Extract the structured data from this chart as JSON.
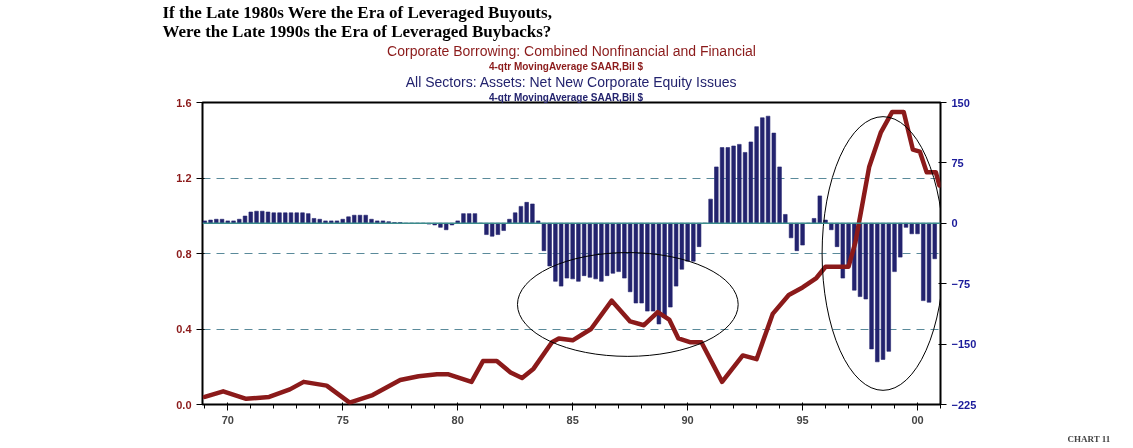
{
  "chart_data": {
    "type": "bar",
    "title": "If the Late 1980s Were the Era of Leveraged Buyouts,\nWere the Late 1990s the Era of Leveraged Buybacks?",
    "xlim": [
      1968.9,
      2001.0
    ],
    "xticks": [
      {
        "value": 1970,
        "label": "70"
      },
      {
        "value": 1975,
        "label": "75"
      },
      {
        "value": 1980,
        "label": "80"
      },
      {
        "value": 1985,
        "label": "85"
      },
      {
        "value": 1990,
        "label": "90"
      },
      {
        "value": 1995,
        "label": "95"
      },
      {
        "value": 2000,
        "label": "00"
      }
    ],
    "ylim": [
      0,
      1.6
    ],
    "yticks": [
      {
        "value": 0,
        "label": "0.0"
      },
      0.4,
      0.8,
      1.2,
      1.6
    ],
    "y2lim": [
      -225,
      150
    ],
    "y2ticks": [
      -225,
      -150,
      -75,
      0,
      75,
      150
    ],
    "grid": "y",
    "legend": "top",
    "ref_lines": [
      {
        "axis": "y2",
        "value": 0,
        "color": "#3c8c8c"
      }
    ],
    "series": [
      {
        "name": "Corporate Borrowing: Combined Nonfinancial and Financial",
        "type": "line",
        "color": "#8b1a1a",
        "axis": "y",
        "x": [
          1969.0,
          1969.8,
          1970.8,
          1971.8,
          1972.7,
          1973.3,
          1974.3,
          1975.3,
          1976.3,
          1977.5,
          1978.3,
          1979.1,
          1979.6,
          1980.6,
          1981.1,
          1981.7,
          1982.3,
          1982.8,
          1983.3,
          1984.1,
          1984.4,
          1985.0,
          1985.8,
          1986.7,
          1987.5,
          1988.1,
          1988.7,
          1989.2,
          1989.6,
          1990.1,
          1990.6,
          1991.5,
          1992.4,
          1993.0,
          1993.7,
          1994.4,
          1995.0,
          1995.6,
          1996.0,
          1997.0,
          1997.3,
          1997.9,
          1998.4,
          1998.9,
          1999.4,
          1999.8,
          2000.1,
          2000.4,
          2000.8,
          2000.95
        ],
        "values": [
          0.04,
          0.07,
          0.03,
          0.04,
          0.08,
          0.12,
          0.1,
          0.01,
          0.05,
          0.13,
          0.15,
          0.16,
          0.16,
          0.12,
          0.23,
          0.23,
          0.17,
          0.14,
          0.19,
          0.33,
          0.35,
          0.34,
          0.4,
          0.55,
          0.44,
          0.42,
          0.49,
          0.45,
          0.35,
          0.33,
          0.33,
          0.12,
          0.26,
          0.24,
          0.48,
          0.58,
          0.62,
          0.67,
          0.73,
          0.73,
          0.86,
          1.26,
          1.44,
          1.55,
          1.55,
          1.35,
          1.34,
          1.23,
          1.23,
          1.16
        ]
      },
      {
        "name": "All Sectors: Assets: Net New Corporate Equity Issues",
        "color": "#23236e",
        "axis": "y2",
        "x": [
          1969.0,
          1969.25,
          1969.5,
          1969.75,
          1970.0,
          1970.25,
          1970.5,
          1970.75,
          1971.0,
          1971.25,
          1971.5,
          1971.75,
          1972.0,
          1972.25,
          1972.5,
          1972.75,
          1973.0,
          1973.25,
          1973.5,
          1973.75,
          1974.0,
          1974.25,
          1974.5,
          1974.75,
          1975.0,
          1975.25,
          1975.5,
          1975.75,
          1976.0,
          1976.25,
          1976.5,
          1976.75,
          1977.0,
          1977.25,
          1977.5,
          1977.75,
          1978.0,
          1978.25,
          1978.5,
          1978.75,
          1979.0,
          1979.25,
          1979.5,
          1979.75,
          1980.0,
          1980.25,
          1980.5,
          1980.75,
          1981.0,
          1981.25,
          1981.5,
          1981.75,
          1982.0,
          1982.25,
          1982.5,
          1982.75,
          1983.0,
          1983.25,
          1983.5,
          1983.75,
          1984.0,
          1984.25,
          1984.5,
          1984.75,
          1985.0,
          1985.25,
          1985.5,
          1985.75,
          1986.0,
          1986.25,
          1986.5,
          1986.75,
          1987.0,
          1987.25,
          1987.5,
          1987.75,
          1988.0,
          1988.25,
          1988.5,
          1988.75,
          1989.0,
          1989.25,
          1989.5,
          1989.75,
          1990.0,
          1990.25,
          1990.5,
          1990.75,
          1991.0,
          1991.25,
          1991.5,
          1991.75,
          1992.0,
          1992.25,
          1992.5,
          1992.75,
          1993.0,
          1993.25,
          1993.5,
          1993.75,
          1994.0,
          1994.25,
          1994.5,
          1994.75,
          1995.0,
          1995.25,
          1995.5,
          1995.75,
          1996.0,
          1996.25,
          1996.5,
          1996.75,
          1997.0,
          1997.25,
          1997.5,
          1997.75,
          1998.0,
          1998.25,
          1998.5,
          1998.75,
          1999.0,
          1999.25,
          1999.5,
          1999.75,
          2000.0,
          2000.25,
          2000.5,
          2000.75
        ],
        "values": [
          3,
          4,
          5,
          5,
          3,
          3,
          5,
          9,
          14,
          15,
          15,
          14,
          13,
          13,
          13,
          13,
          13,
          13,
          12,
          6,
          5,
          3,
          3,
          3,
          5,
          8,
          10,
          10,
          10,
          5,
          3,
          3,
          2,
          1,
          1,
          0,
          0,
          0,
          0,
          -1,
          -2,
          -5,
          -8,
          -2,
          3,
          12,
          12,
          12,
          0,
          -14,
          -16,
          -14,
          -9,
          5,
          13,
          21,
          26,
          24,
          3,
          -34,
          -53,
          -72,
          -78,
          -68,
          -69,
          -72,
          -65,
          -67,
          -69,
          -72,
          -65,
          -62,
          -60,
          -68,
          -85,
          -99,
          -99,
          -109,
          -109,
          -125,
          -117,
          -104,
          -78,
          -57,
          -47,
          -47,
          -29,
          0,
          30,
          70,
          94,
          94,
          96,
          98,
          88,
          101,
          120,
          131,
          133,
          112,
          70,
          11,
          -18,
          -34,
          -27,
          0,
          6,
          34,
          4,
          -8,
          -29,
          -68,
          -52,
          -83,
          -91,
          -94,
          -156,
          -172,
          -169,
          -159,
          -60,
          -42,
          -5,
          -13,
          -13,
          -96,
          -98,
          -44
        ]
      }
    ],
    "annotations": [
      "4-qtr MovingAverage     SAAR,Bil $",
      "4-qtr MovingAverage     SAAR,Bil $",
      "CHART 11"
    ]
  }
}
